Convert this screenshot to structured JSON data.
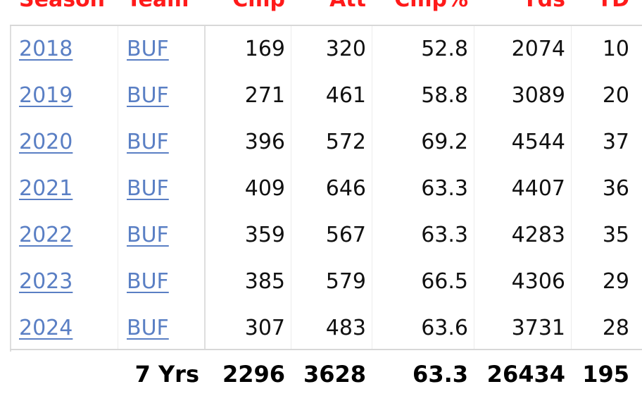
{
  "colors": {
    "header": "#ff1a1a",
    "link": "#5a7fc4",
    "text": "#111111",
    "rule": "#d8d8d8"
  },
  "headers": {
    "season": "Season",
    "team": "Team",
    "cmp": "Cmp",
    "att": "Att",
    "cmp_pct": "Cmp%",
    "yds": "Yds",
    "td": "TD"
  },
  "rows": [
    {
      "season": "2018",
      "team": "BUF",
      "cmp": "169",
      "att": "320",
      "cmp_pct": "52.8",
      "yds": "2074",
      "td": "10"
    },
    {
      "season": "2019",
      "team": "BUF",
      "cmp": "271",
      "att": "461",
      "cmp_pct": "58.8",
      "yds": "3089",
      "td": "20"
    },
    {
      "season": "2020",
      "team": "BUF",
      "cmp": "396",
      "att": "572",
      "cmp_pct": "69.2",
      "yds": "4544",
      "td": "37"
    },
    {
      "season": "2021",
      "team": "BUF",
      "cmp": "409",
      "att": "646",
      "cmp_pct": "63.3",
      "yds": "4407",
      "td": "36"
    },
    {
      "season": "2022",
      "team": "BUF",
      "cmp": "359",
      "att": "567",
      "cmp_pct": "63.3",
      "yds": "4283",
      "td": "35"
    },
    {
      "season": "2023",
      "team": "BUF",
      "cmp": "385",
      "att": "579",
      "cmp_pct": "66.5",
      "yds": "4306",
      "td": "29"
    },
    {
      "season": "2024",
      "team": "BUF",
      "cmp": "307",
      "att": "483",
      "cmp_pct": "63.6",
      "yds": "3731",
      "td": "28"
    }
  ],
  "totals": {
    "label": "7 Yrs",
    "cmp": "2296",
    "att": "3628",
    "cmp_pct": "63.3",
    "yds": "26434",
    "td": "195"
  }
}
